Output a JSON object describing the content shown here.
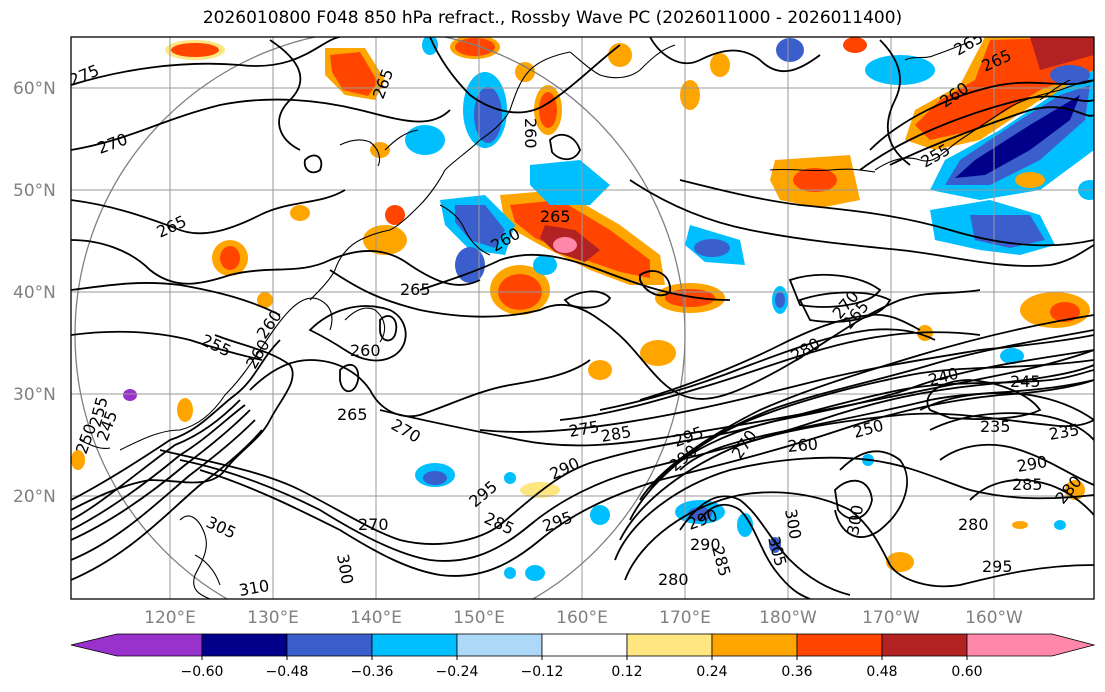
{
  "title": "2026010800 F048 850 hPa refract., Rossby Wave PC (2026011000 - 2026011400)",
  "map": {
    "lat_labels": [
      "60°N",
      "50°N",
      "40°N",
      "30°N",
      "20°N"
    ],
    "lon_labels": [
      "120°E",
      "130°E",
      "140°E",
      "150°E",
      "160°E",
      "170°E",
      "180°W",
      "170°W",
      "160°W"
    ],
    "contour_labels": [
      "275",
      "270",
      "265",
      "265",
      "260",
      "255",
      "260",
      "260",
      "265",
      "255",
      "250",
      "245",
      "265",
      "270",
      "285",
      "275",
      "290",
      "295",
      "295",
      "285",
      "300",
      "305",
      "310",
      "270",
      "280",
      "260",
      "270",
      "265",
      "290",
      "290",
      "295",
      "290",
      "300",
      "305",
      "280",
      "285",
      "300",
      "280",
      "295",
      "240",
      "245",
      "235",
      "235",
      "290",
      "285",
      "280",
      "265",
      "260",
      "255",
      "250",
      "265",
      "260",
      "260",
      "265",
      "270"
    ],
    "colors": {
      "neg_lt_060": "#9932CC",
      "neg_060": "#00008B",
      "neg_048": "#3A5FCD",
      "neg_036": "#00BFFF",
      "neg_024": "#87CEFA",
      "neg_012": "#FFFFFF",
      "pos_012": "#FFE680",
      "pos_024": "#FFA500",
      "pos_036": "#FF4500",
      "pos_048": "#B22222",
      "pos_060": "#FF88AA"
    }
  },
  "colorbar": {
    "ticks": [
      "−0.60",
      "−0.48",
      "−0.36",
      "−0.24",
      "−0.12",
      "0.12",
      "0.24",
      "0.36",
      "0.48",
      "0.60"
    ],
    "colors": [
      "#9932CC",
      "#00008B",
      "#3A5FCD",
      "#00BFFF",
      "#ADD8F7",
      "#FFFFFF",
      "#FFE680",
      "#FFA500",
      "#FF4500",
      "#B22222",
      "#FF88AA"
    ]
  }
}
